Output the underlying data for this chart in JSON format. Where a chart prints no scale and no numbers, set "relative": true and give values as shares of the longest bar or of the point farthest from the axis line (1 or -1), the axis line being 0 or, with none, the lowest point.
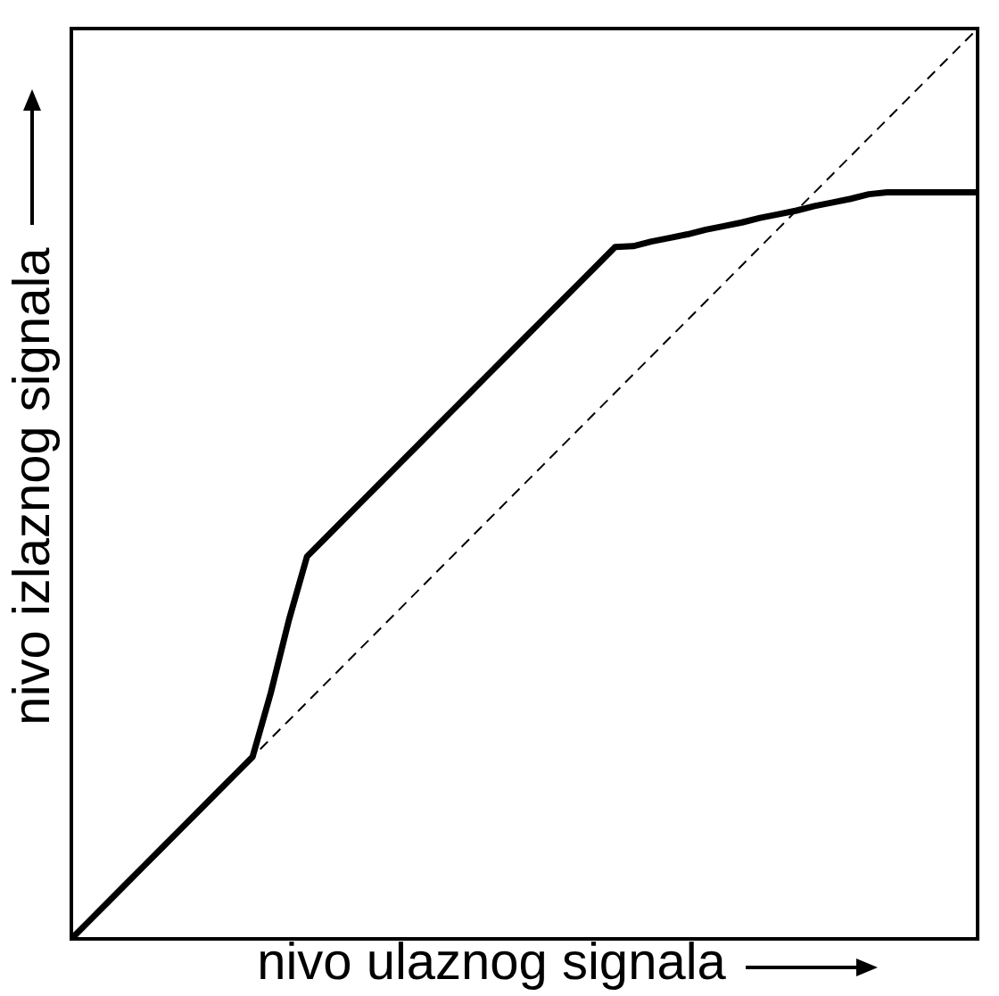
{
  "chart_data": {
    "type": "line",
    "relative": true,
    "xlabel": "nivo ulaznog signala",
    "ylabel": "nivo izlaznog signala",
    "grid": false,
    "categories": [
      null,
      null,
      null,
      null,
      null,
      null,
      null,
      null,
      null,
      null,
      null,
      null,
      null,
      null,
      null,
      null,
      null,
      null,
      null,
      null,
      null,
      null,
      null,
      null,
      null,
      null,
      null,
      null,
      null,
      null,
      null,
      null,
      null,
      null,
      null,
      null,
      null,
      null,
      null,
      null,
      null,
      null,
      null,
      null,
      null,
      null,
      null,
      null,
      null,
      null,
      null
    ],
    "series": [
      {
        "color": "#000000",
        "line_style": "solid",
        "values": [
          0,
          0.02,
          0.04,
          0.06,
          0.08,
          0.1,
          0.12,
          0.14,
          0.16,
          0.18,
          0.2,
          0.27,
          0.35,
          0.42,
          0.44,
          0.46,
          0.48,
          0.5,
          0.52,
          0.54,
          0.56,
          0.58,
          0.6,
          0.62,
          0.64,
          0.66,
          0.68,
          0.7,
          0.72,
          0.74,
          0.76,
          0.761,
          0.766,
          0.77,
          0.774,
          0.779,
          0.783,
          0.787,
          0.792,
          0.796,
          0.8,
          0.805,
          0.809,
          0.813,
          0.818,
          0.82,
          0.82,
          0.82,
          0.82,
          0.82,
          0.82
        ]
      },
      {
        "color": "#000000",
        "line_style": "dashed",
        "values": [
          0,
          0.02,
          0.04,
          0.06,
          0.08,
          0.1,
          0.12,
          0.14,
          0.16,
          0.18,
          0.2,
          0.22,
          0.24,
          0.26,
          0.28,
          0.3,
          0.32,
          0.34,
          0.36,
          0.38,
          0.4,
          0.42,
          0.44,
          0.46,
          0.48,
          0.5,
          0.52,
          0.54,
          0.56,
          0.58,
          0.6,
          0.62,
          0.64,
          0.66,
          0.68,
          0.7,
          0.72,
          0.74,
          0.76,
          0.78,
          0.8,
          0.82,
          0.84,
          0.86,
          0.88,
          0.9,
          0.92,
          0.94,
          0.96,
          0.98,
          1
        ]
      }
    ]
  }
}
